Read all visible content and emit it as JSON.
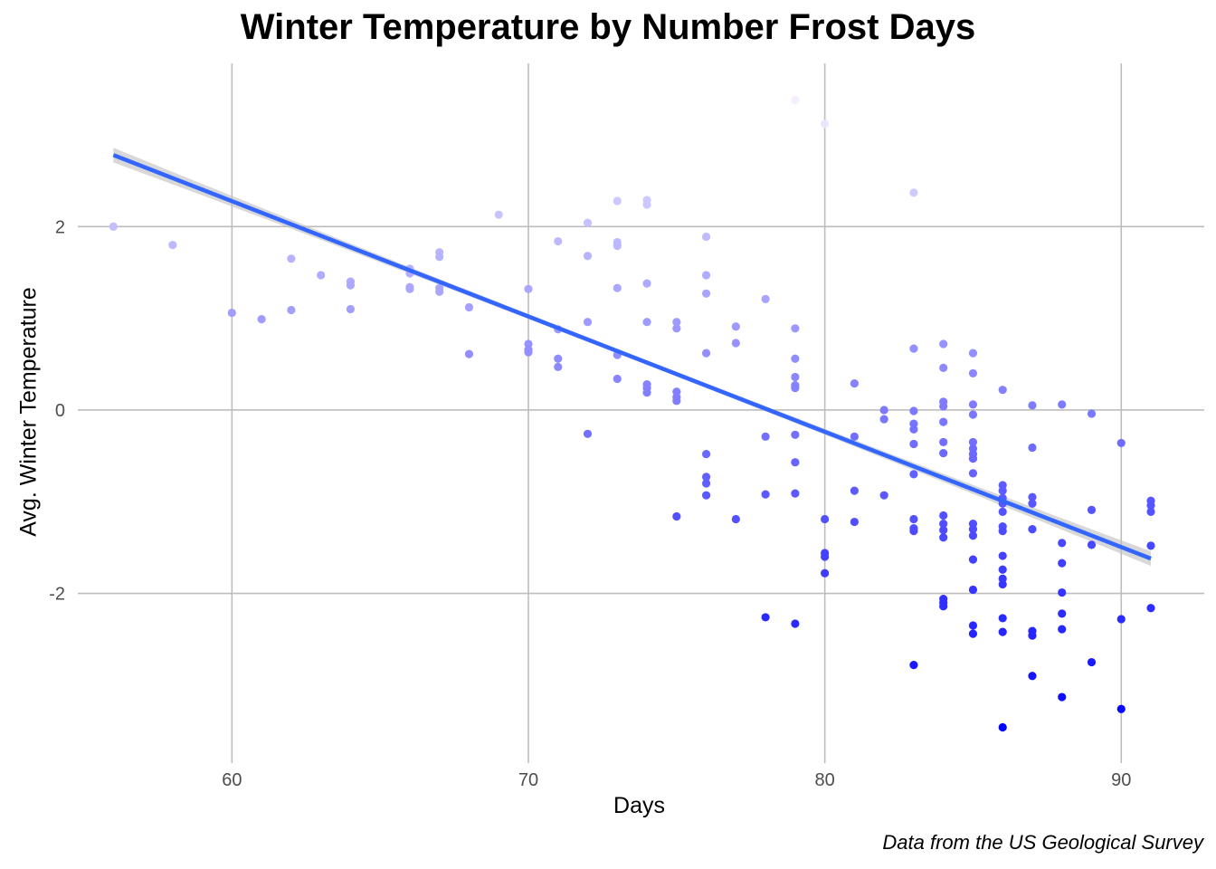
{
  "chart_data": {
    "type": "scatter",
    "title": "Winter Temperature by Number Frost Days",
    "xlabel": "Days",
    "ylabel": "Avg. Winter Temperature",
    "caption": "Data from the US Geological Survey",
    "xlim": [
      54.8,
      92.8
    ],
    "ylim": [
      -3.85,
      3.78
    ],
    "x_ticks": [
      60,
      70,
      80,
      90
    ],
    "y_ticks": [
      2,
      0,
      -2
    ],
    "grid": true,
    "legend": "none",
    "colors": {
      "low": "#0000ff",
      "high": "#f6f0ff",
      "trend": "#3366ff",
      "band": "#bebebe",
      "grid": "#bdbdbd"
    },
    "trend_line": {
      "x": [
        56,
        91
      ],
      "y": [
        2.78,
        -1.62
      ],
      "confidence_band": true
    },
    "points": [
      {
        "x": 56,
        "y": 2.0
      },
      {
        "x": 58,
        "y": 1.8
      },
      {
        "x": 60,
        "y": 1.06
      },
      {
        "x": 61,
        "y": 0.99
      },
      {
        "x": 62,
        "y": 1.65
      },
      {
        "x": 62,
        "y": 1.09
      },
      {
        "x": 63,
        "y": 1.47
      },
      {
        "x": 64,
        "y": 1.4
      },
      {
        "x": 64,
        "y": 1.36
      },
      {
        "x": 64,
        "y": 1.1
      },
      {
        "x": 66,
        "y": 1.54
      },
      {
        "x": 66,
        "y": 1.49
      },
      {
        "x": 66,
        "y": 1.34
      },
      {
        "x": 66,
        "y": 1.32
      },
      {
        "x": 67,
        "y": 1.72
      },
      {
        "x": 67,
        "y": 1.67
      },
      {
        "x": 67,
        "y": 1.33
      },
      {
        "x": 67,
        "y": 1.29
      },
      {
        "x": 68,
        "y": 1.12
      },
      {
        "x": 68,
        "y": 0.61
      },
      {
        "x": 69,
        "y": 2.13
      },
      {
        "x": 70,
        "y": 1.32
      },
      {
        "x": 70,
        "y": 0.72
      },
      {
        "x": 70,
        "y": 0.66
      },
      {
        "x": 70,
        "y": 0.63
      },
      {
        "x": 71,
        "y": 1.84
      },
      {
        "x": 71,
        "y": 0.88
      },
      {
        "x": 71,
        "y": 0.56
      },
      {
        "x": 71,
        "y": 0.47
      },
      {
        "x": 72,
        "y": 2.04
      },
      {
        "x": 72,
        "y": 1.68
      },
      {
        "x": 72,
        "y": 0.96
      },
      {
        "x": 72,
        "y": -0.26
      },
      {
        "x": 73,
        "y": 2.28
      },
      {
        "x": 73,
        "y": 1.83
      },
      {
        "x": 73,
        "y": 1.79
      },
      {
        "x": 73,
        "y": 1.33
      },
      {
        "x": 73,
        "y": 0.6
      },
      {
        "x": 73,
        "y": 0.34
      },
      {
        "x": 74,
        "y": 2.29
      },
      {
        "x": 74,
        "y": 2.24
      },
      {
        "x": 74,
        "y": 1.38
      },
      {
        "x": 74,
        "y": 0.96
      },
      {
        "x": 74,
        "y": 0.28
      },
      {
        "x": 74,
        "y": 0.24
      },
      {
        "x": 74,
        "y": 0.19
      },
      {
        "x": 75,
        "y": 0.96
      },
      {
        "x": 75,
        "y": 0.89
      },
      {
        "x": 75,
        "y": 0.2
      },
      {
        "x": 75,
        "y": 0.14
      },
      {
        "x": 75,
        "y": 0.1
      },
      {
        "x": 75,
        "y": -1.16
      },
      {
        "x": 76,
        "y": 1.89
      },
      {
        "x": 76,
        "y": 1.47
      },
      {
        "x": 76,
        "y": 1.27
      },
      {
        "x": 76,
        "y": 0.62
      },
      {
        "x": 76,
        "y": -0.48
      },
      {
        "x": 76,
        "y": -0.73
      },
      {
        "x": 76,
        "y": -0.8
      },
      {
        "x": 76,
        "y": -0.93
      },
      {
        "x": 77,
        "y": 0.91
      },
      {
        "x": 77,
        "y": 0.73
      },
      {
        "x": 77,
        "y": -1.19
      },
      {
        "x": 78,
        "y": 1.21
      },
      {
        "x": 78,
        "y": -0.29
      },
      {
        "x": 78,
        "y": -0.92
      },
      {
        "x": 78,
        "y": -2.26
      },
      {
        "x": 79,
        "y": 0.89
      },
      {
        "x": 79,
        "y": 0.56
      },
      {
        "x": 79,
        "y": 0.36
      },
      {
        "x": 79,
        "y": 0.27
      },
      {
        "x": 79,
        "y": 0.24
      },
      {
        "x": 79,
        "y": -0.27
      },
      {
        "x": 79,
        "y": -0.57
      },
      {
        "x": 79,
        "y": -0.91
      },
      {
        "x": 79,
        "y": -2.33
      },
      {
        "x": 79,
        "y": 3.38
      },
      {
        "x": 80,
        "y": 3.12
      },
      {
        "x": 80,
        "y": -1.19
      },
      {
        "x": 80,
        "y": -1.56
      },
      {
        "x": 80,
        "y": -1.6
      },
      {
        "x": 80,
        "y": -1.78
      },
      {
        "x": 81,
        "y": 0.29
      },
      {
        "x": 81,
        "y": -0.29
      },
      {
        "x": 81,
        "y": -0.88
      },
      {
        "x": 81,
        "y": -1.22
      },
      {
        "x": 82,
        "y": 0.0
      },
      {
        "x": 82,
        "y": -0.1
      },
      {
        "x": 82,
        "y": -0.93
      },
      {
        "x": 83,
        "y": 2.37
      },
      {
        "x": 83,
        "y": 0.67
      },
      {
        "x": 83,
        "y": -0.01
      },
      {
        "x": 83,
        "y": -0.15
      },
      {
        "x": 83,
        "y": -0.21
      },
      {
        "x": 83,
        "y": -0.37
      },
      {
        "x": 83,
        "y": -0.7
      },
      {
        "x": 83,
        "y": -1.19
      },
      {
        "x": 83,
        "y": -1.29
      },
      {
        "x": 83,
        "y": -1.32
      },
      {
        "x": 83,
        "y": -2.78
      },
      {
        "x": 84,
        "y": 0.72
      },
      {
        "x": 84,
        "y": 0.46
      },
      {
        "x": 84,
        "y": 0.09
      },
      {
        "x": 84,
        "y": 0.04
      },
      {
        "x": 84,
        "y": -0.13
      },
      {
        "x": 84,
        "y": -0.35
      },
      {
        "x": 84,
        "y": -0.47
      },
      {
        "x": 84,
        "y": -1.15
      },
      {
        "x": 84,
        "y": -1.24
      },
      {
        "x": 84,
        "y": -1.31
      },
      {
        "x": 84,
        "y": -1.39
      },
      {
        "x": 84,
        "y": -2.06
      },
      {
        "x": 84,
        "y": -2.1
      },
      {
        "x": 84,
        "y": -2.14
      },
      {
        "x": 85,
        "y": 0.62
      },
      {
        "x": 85,
        "y": 0.4
      },
      {
        "x": 85,
        "y": 0.06
      },
      {
        "x": 85,
        "y": -0.05
      },
      {
        "x": 85,
        "y": -0.35
      },
      {
        "x": 85,
        "y": -0.42
      },
      {
        "x": 85,
        "y": -0.48
      },
      {
        "x": 85,
        "y": -0.53
      },
      {
        "x": 85,
        "y": -0.69
      },
      {
        "x": 85,
        "y": -1.24
      },
      {
        "x": 85,
        "y": -1.3
      },
      {
        "x": 85,
        "y": -1.37
      },
      {
        "x": 85,
        "y": -1.63
      },
      {
        "x": 85,
        "y": -1.96
      },
      {
        "x": 85,
        "y": -2.35
      },
      {
        "x": 85,
        "y": -2.44
      },
      {
        "x": 86,
        "y": 0.22
      },
      {
        "x": 86,
        "y": -0.82
      },
      {
        "x": 86,
        "y": -0.88
      },
      {
        "x": 86,
        "y": -0.96
      },
      {
        "x": 86,
        "y": -1.02
      },
      {
        "x": 86,
        "y": -1.11
      },
      {
        "x": 86,
        "y": -1.27
      },
      {
        "x": 86,
        "y": -1.32
      },
      {
        "x": 86,
        "y": -1.59
      },
      {
        "x": 86,
        "y": -1.74
      },
      {
        "x": 86,
        "y": -1.84
      },
      {
        "x": 86,
        "y": -1.9
      },
      {
        "x": 86,
        "y": -2.27
      },
      {
        "x": 86,
        "y": -2.42
      },
      {
        "x": 86,
        "y": -3.46
      },
      {
        "x": 87,
        "y": 0.05
      },
      {
        "x": 87,
        "y": -0.41
      },
      {
        "x": 87,
        "y": -0.95
      },
      {
        "x": 87,
        "y": -1.02
      },
      {
        "x": 87,
        "y": -1.3
      },
      {
        "x": 87,
        "y": -2.41
      },
      {
        "x": 87,
        "y": -2.46
      },
      {
        "x": 87,
        "y": -2.9
      },
      {
        "x": 88,
        "y": 0.06
      },
      {
        "x": 88,
        "y": -1.45
      },
      {
        "x": 88,
        "y": -1.67
      },
      {
        "x": 88,
        "y": -1.99
      },
      {
        "x": 88,
        "y": -2.22
      },
      {
        "x": 88,
        "y": -2.39
      },
      {
        "x": 88,
        "y": -3.13
      },
      {
        "x": 89,
        "y": -0.04
      },
      {
        "x": 89,
        "y": -1.09
      },
      {
        "x": 89,
        "y": -1.47
      },
      {
        "x": 89,
        "y": -2.75
      },
      {
        "x": 90,
        "y": -0.36
      },
      {
        "x": 90,
        "y": -2.28
      },
      {
        "x": 90,
        "y": -3.26
      },
      {
        "x": 91,
        "y": -0.99
      },
      {
        "x": 91,
        "y": -1.04
      },
      {
        "x": 91,
        "y": -1.11
      },
      {
        "x": 91,
        "y": -1.48
      },
      {
        "x": 91,
        "y": -2.16
      }
    ]
  }
}
